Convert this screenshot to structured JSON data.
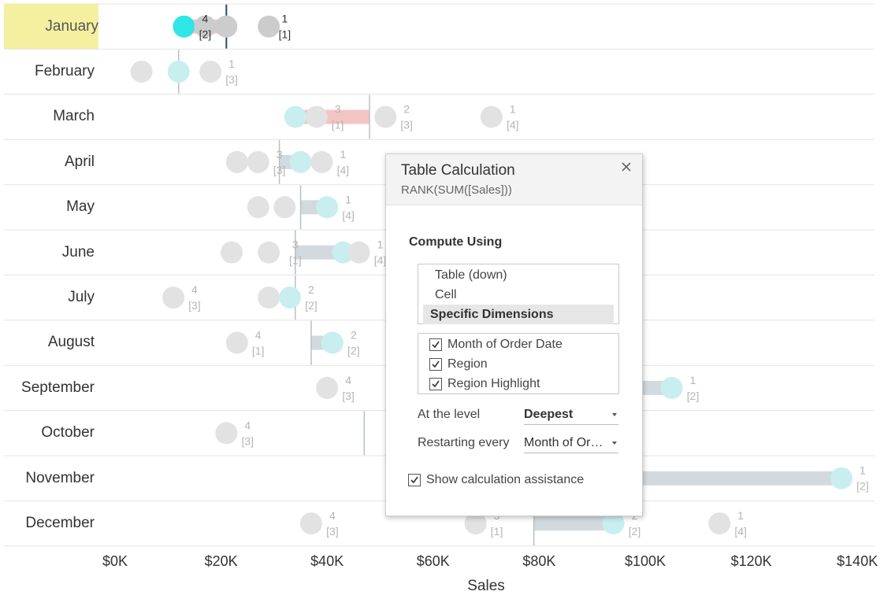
{
  "months": [
    "January",
    "February",
    "March",
    "April",
    "May",
    "June",
    "July",
    "August",
    "September",
    "October",
    "November",
    "December"
  ],
  "highlighted_month": "January",
  "axis": {
    "title": "Sales",
    "ticks": [
      "$0K",
      "$20K",
      "$40K",
      "$60K",
      "$80K",
      "$100K",
      "$120K",
      "$140K"
    ]
  },
  "colors": {
    "highlight_fill": "#f5f0a0",
    "active_dot": "#2ee6e6",
    "dim_dot": "#c9eef0",
    "gray_dot": "#e2e2e2",
    "pink_bar": "#f4c5c5",
    "gray_bar": "#d3dadf",
    "ref_line": "#b8c0c6"
  },
  "chart_data": {
    "type": "scatter",
    "title": "",
    "xlabel": "Sales",
    "ylabel": "",
    "xlim": [
      0,
      140000
    ],
    "categories": [
      "January",
      "February",
      "March",
      "April",
      "May",
      "June",
      "July",
      "August",
      "September",
      "October",
      "November",
      "December"
    ],
    "rows": [
      {
        "month": "January",
        "points": [
          13000,
          17000,
          21000,
          29000
        ],
        "highlight": 13000,
        "reference": 21000,
        "annotations": [
          {
            "x": 17000,
            "rank": "4",
            "index": "[2]"
          },
          {
            "x": 32000,
            "rank": "1",
            "index": "[1]"
          }
        ]
      },
      {
        "month": "February",
        "points": [
          5000,
          12000,
          18000
        ],
        "highlight": 12000,
        "reference": 12000,
        "annotations": [
          {
            "x": 22000,
            "rank": "1",
            "index": "[3]"
          }
        ]
      },
      {
        "month": "March",
        "points": [
          34000,
          38000,
          51000,
          71000
        ],
        "highlight": 34000,
        "reference": 48000,
        "annotations": [
          {
            "x": 42000,
            "rank": "3",
            "index": "[1]"
          },
          {
            "x": 55000,
            "rank": "2",
            "index": "[3]"
          },
          {
            "x": 75000,
            "rank": "1",
            "index": "[4]"
          }
        ]
      },
      {
        "month": "April",
        "points": [
          23000,
          27000,
          35000,
          39000
        ],
        "highlight": 35000,
        "reference": 31000,
        "annotations": [
          {
            "x": 31000,
            "rank": "3",
            "index": "[3]"
          },
          {
            "x": 43000,
            "rank": "1",
            "index": "[4]"
          }
        ]
      },
      {
        "month": "May",
        "points": [
          27000,
          32000,
          40000
        ],
        "highlight": 40000,
        "reference": 35000,
        "annotations": [
          {
            "x": 44000,
            "rank": "1",
            "index": "[4]"
          }
        ]
      },
      {
        "month": "June",
        "points": [
          22000,
          29000,
          43000,
          46000
        ],
        "highlight": 43000,
        "reference": 34000,
        "annotations": [
          {
            "x": 34000,
            "rank": "3",
            "index": "[1]"
          },
          {
            "x": 50000,
            "rank": "1",
            "index": "[4]"
          }
        ]
      },
      {
        "month": "July",
        "points": [
          11000,
          29000,
          33000
        ],
        "highlight": 33000,
        "reference": 34000,
        "annotations": [
          {
            "x": 15000,
            "rank": "4",
            "index": "[3]"
          },
          {
            "x": 37000,
            "rank": "2",
            "index": "[2]"
          }
        ]
      },
      {
        "month": "August",
        "points": [
          23000,
          41000
        ],
        "highlight": 41000,
        "reference": 37000,
        "annotations": [
          {
            "x": 27000,
            "rank": "4",
            "index": "[1]"
          },
          {
            "x": 45000,
            "rank": "2",
            "index": "[2]"
          }
        ]
      },
      {
        "month": "September",
        "points": [
          40000,
          105000
        ],
        "highlight": 105000,
        "reference": 97000,
        "annotations": [
          {
            "x": 44000,
            "rank": "4",
            "index": "[3]"
          },
          {
            "x": 109000,
            "rank": "1",
            "index": "[2]"
          }
        ]
      },
      {
        "month": "October",
        "points": [
          21000
        ],
        "highlight": null,
        "reference": 47000,
        "annotations": [
          {
            "x": 25000,
            "rank": "4",
            "index": "[3]"
          }
        ]
      },
      {
        "month": "November",
        "points": [
          137000
        ],
        "highlight": 137000,
        "reference": 97000,
        "annotations": [
          {
            "x": 141000,
            "rank": "1",
            "index": "[2]"
          }
        ]
      },
      {
        "month": "December",
        "points": [
          37000,
          68000,
          94000,
          114000
        ],
        "highlight": 94000,
        "reference": 79000,
        "annotations": [
          {
            "x": 41000,
            "rank": "4",
            "index": "[3]"
          },
          {
            "x": 72000,
            "rank": "3",
            "index": "[1]"
          },
          {
            "x": 98000,
            "rank": "2",
            "index": "[2]"
          },
          {
            "x": 118000,
            "rank": "1",
            "index": "[4]"
          }
        ]
      }
    ]
  },
  "dialog": {
    "title": "Table Calculation",
    "formula": "RANK(SUM([Sales]))",
    "section_label": "Compute Using",
    "compute_options": [
      "Table (down)",
      "Cell",
      "Specific Dimensions"
    ],
    "selected_option": "Specific Dimensions",
    "dimensions": [
      "Month of Order Date",
      "Region",
      "Region Highlight"
    ],
    "level_label": "At the level",
    "level_value": "Deepest",
    "restart_label": "Restarting every",
    "restart_value": "Month of Order Date",
    "restart_display": "Month of Or…",
    "show_assist_label": "Show calculation assistance",
    "show_assist_checked": true
  }
}
